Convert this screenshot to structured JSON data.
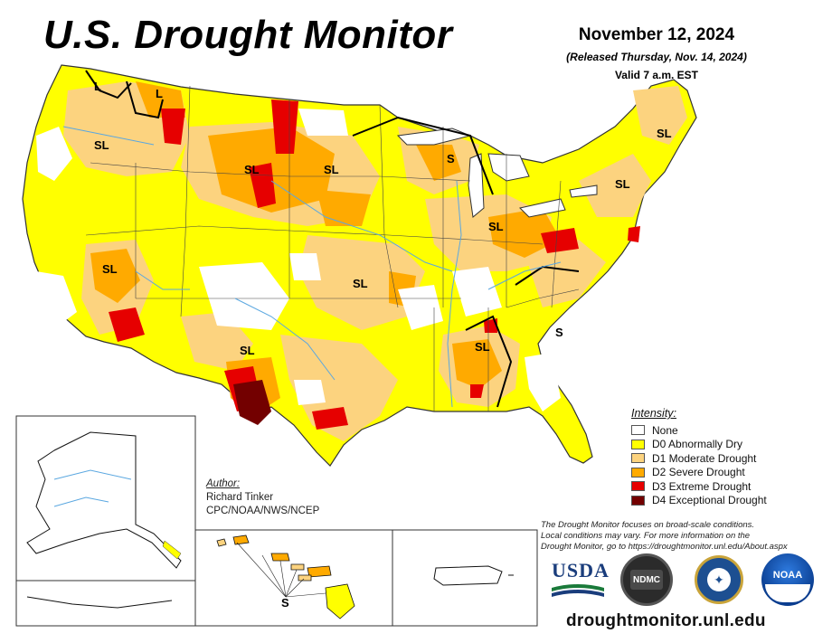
{
  "header": {
    "title": "U.S. Drought Monitor",
    "date": "November 12, 2024",
    "released": "(Released Thursday, Nov. 14, 2024)",
    "valid": "Valid 7 a.m. EST"
  },
  "legend": {
    "title": "Intensity:",
    "items": [
      {
        "label": "None",
        "color": "#ffffff"
      },
      {
        "label": "D0 Abnormally Dry",
        "color": "#ffff00"
      },
      {
        "label": "D1 Moderate Drought",
        "color": "#fcd37f"
      },
      {
        "label": "D2 Severe Drought",
        "color": "#ffaa00"
      },
      {
        "label": "D3 Extreme Drought",
        "color": "#e60000"
      },
      {
        "label": "D4 Exceptional Drought",
        "color": "#730000"
      }
    ]
  },
  "author": {
    "heading": "Author:",
    "name": "Richard Tinker",
    "org": "CPC/NOAA/NWS/NCEP"
  },
  "note": {
    "line1": "The Drought Monitor focuses on broad-scale conditions.",
    "line2": "Local conditions may vary. For more information on the",
    "line3": "Drought Monitor, go to https://droughtmonitor.unl.edu/About.aspx"
  },
  "impact_labels": {
    "sl": "SL",
    "s": "S",
    "l": "L"
  },
  "logos": {
    "usda": "USDA",
    "ndmc": "NDMC",
    "noaa": "NOAA"
  },
  "footer": {
    "url": "droughtmonitor.unl.edu"
  },
  "colors": {
    "none": "#ffffff",
    "d0": "#ffff00",
    "d1": "#fcd37f",
    "d2": "#ffaa00",
    "d3": "#e60000",
    "d4": "#730000",
    "water": "#5aa7e0"
  }
}
